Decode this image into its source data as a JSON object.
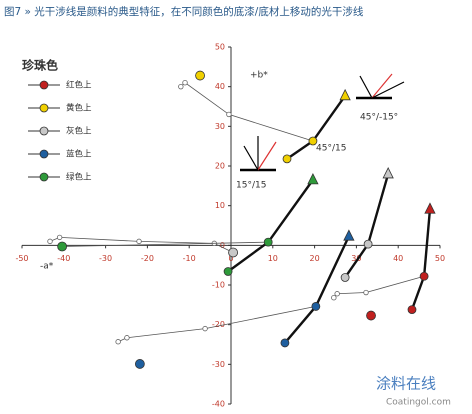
{
  "chart_data": {
    "type": "line",
    "title": "图7 » 光干涉线是颜料的典型特征，在不同颜色的底漆/底材上移动的光干涉线",
    "legend_title": "珍珠色",
    "xlim": [
      -50,
      50
    ],
    "ylim": [
      -40,
      50
    ],
    "xticks": [
      -50,
      -40,
      -30,
      -20,
      -10,
      0,
      10,
      20,
      30,
      40,
      50
    ],
    "yticks": [
      -40,
      -30,
      -20,
      -10,
      0,
      10,
      20,
      30,
      40,
      50
    ],
    "annotations": [
      "+b*",
      "-a*",
      "45°/15",
      "45°/-15°",
      "15°/15"
    ],
    "watermark": [
      "涂料在线",
      "Coatingol.com"
    ],
    "series": [
      {
        "name": "红色上",
        "color": "#c0201f",
        "dot": {
          "x": 33.5,
          "y": -17.7
        },
        "thin": {
          "x": [
            24.6,
            25.4,
            32.3,
            46.2
          ],
          "y": [
            -13.2,
            -12.2,
            -11.9,
            -7.8
          ]
        },
        "thick": {
          "x": [
            43.3,
            46.2,
            47.6
          ],
          "y": [
            -16.2,
            -7.8,
            9.1
          ]
        }
      },
      {
        "name": "黄色上",
        "color": "#f0d000",
        "dot": {
          "x": -7.4,
          "y": 42.8
        },
        "thin": {
          "x": [
            -12,
            -11,
            -0.5,
            19.6
          ],
          "y": [
            40,
            41,
            33,
            26.3
          ]
        },
        "thick": {
          "x": [
            13.4,
            19.6,
            27.3
          ],
          "y": [
            21.8,
            26.3,
            37.7
          ]
        }
      },
      {
        "name": "灰色上",
        "color": "#c8c8c8",
        "dot": {
          "x": 0.5,
          "y": -1.8
        },
        "thin": {
          "x": [
            -43.3,
            -41,
            -22,
            -4,
            0.5
          ],
          "y": [
            1,
            2,
            1,
            0.5,
            -1.8
          ]
        },
        "thick": {
          "x": [
            27.3,
            32.8,
            37.6
          ],
          "y": [
            -8.1,
            0.3,
            18
          ]
        }
      },
      {
        "name": "蓝色上",
        "color": "#1f5f9f",
        "dot": {
          "x": -21.8,
          "y": -29.9
        },
        "thin": {
          "x": [
            -27,
            -24.9,
            -6.2,
            20.3
          ],
          "y": [
            -24.3,
            -23.3,
            -21,
            -15.4
          ]
        },
        "thick": {
          "x": [
            12.9,
            20.3,
            28.2
          ],
          "y": [
            -24.6,
            -15.4,
            2.3
          ]
        }
      },
      {
        "name": "绿色上",
        "color": "#2e9a3a",
        "dot": {
          "x": -40.4,
          "y": -0.3
        },
        "thin": {
          "x": [
            -40.4,
            8.9
          ],
          "y": [
            -0.3,
            0.8
          ]
        },
        "thick": {
          "x": [
            -0.7,
            8.9,
            19.6
          ],
          "y": [
            -6.6,
            0.8,
            16.5
          ]
        }
      }
    ]
  }
}
